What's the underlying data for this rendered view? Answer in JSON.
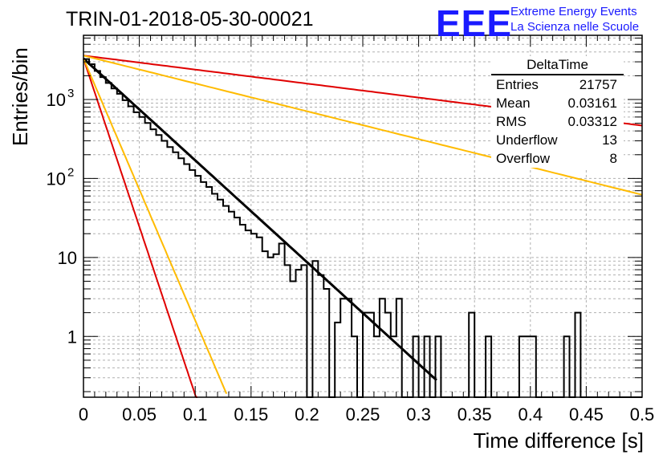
{
  "header": {
    "title": "TRIN-01-2018-05-30-00021",
    "logo": "EEE",
    "logo_line1": "Extreme Energy Events",
    "logo_line2": "La Scienza nelle Scuole"
  },
  "stats_box": {
    "title": "DeltaTime",
    "rows": [
      {
        "label": "Entries",
        "value": "21757"
      },
      {
        "label": "Mean",
        "value": "0.03161"
      },
      {
        "label": "RMS",
        "value": "0.03312"
      },
      {
        "label": "Underflow",
        "value": "13"
      },
      {
        "label": "Overflow",
        "value": "8"
      }
    ]
  },
  "colors": {
    "histogram": "#000000",
    "fit": "#000000",
    "red": "#e00000",
    "yellow": "#ffbb00",
    "grid": "#b0b0b0"
  },
  "chart_data": {
    "type": "line",
    "xlabel": "Time difference [s]",
    "ylabel": "Entries/bin",
    "xlim": [
      0,
      0.5
    ],
    "ylim": [
      0.17,
      6500
    ],
    "y_scale": "log",
    "grid": true,
    "legend": "top-right",
    "x_ticks": [
      "0",
      "0.05",
      "0.1",
      "0.15",
      "0.2",
      "0.25",
      "0.3",
      "0.35",
      "0.4",
      "0.45",
      "0.5"
    ],
    "y_ticks": [
      {
        "value": 1,
        "label": "1"
      },
      {
        "value": 10,
        "label": "10"
      },
      {
        "value": 100,
        "label": "10",
        "exp": "2"
      },
      {
        "value": 1000,
        "label": "10",
        "exp": "3"
      }
    ],
    "histogram": {
      "bin_width": 0.005,
      "values": [
        3250,
        2800,
        2300,
        1920,
        1620,
        1380,
        1180,
        980,
        820,
        690,
        600,
        505,
        420,
        355,
        300,
        250,
        215,
        180,
        152,
        128,
        108,
        90,
        78,
        64,
        54,
        45,
        38,
        32,
        26,
        22,
        20,
        18,
        12,
        10,
        11,
        15,
        8,
        5,
        7,
        8,
        0.1,
        9,
        6,
        4,
        0.1,
        1.5,
        3,
        3,
        1,
        0.1,
        2,
        2,
        1,
        3,
        2,
        1,
        3,
        0.1,
        0.1,
        1,
        0.1,
        1,
        0.1,
        1,
        0.1,
        0.1,
        0.1,
        0.1,
        0.1,
        2,
        0.1,
        0.1,
        1,
        0.1,
        0.1,
        0.1,
        0.1,
        0.1,
        1,
        1,
        1,
        0.1,
        0.1,
        0.1,
        0.1,
        0.1,
        1,
        0.1,
        2,
        0.1,
        0.1,
        0.1,
        0.1,
        0.1,
        0.1,
        0.1,
        0.1,
        0.1,
        0.1,
        0.1
      ]
    },
    "series": [
      {
        "color": "#000000",
        "amplitude": 3300,
        "decay": 0.0337,
        "x": [
          0,
          0.316
        ]
      },
      {
        "color": "#e00000",
        "amplitude": 3600,
        "decay": 0.2449,
        "x": [
          0,
          0.5
        ]
      },
      {
        "color": "#ffbb00",
        "amplitude": 3600,
        "decay": 0.1232,
        "x": [
          0,
          0.5
        ]
      },
      {
        "color": "#e00000",
        "amplitude": 3300,
        "decay": 0.0102,
        "x": [
          0,
          0.102
        ]
      },
      {
        "color": "#ffbb00",
        "amplitude": 3300,
        "decay": 0.0131,
        "x": [
          0,
          0.128
        ]
      }
    ]
  }
}
